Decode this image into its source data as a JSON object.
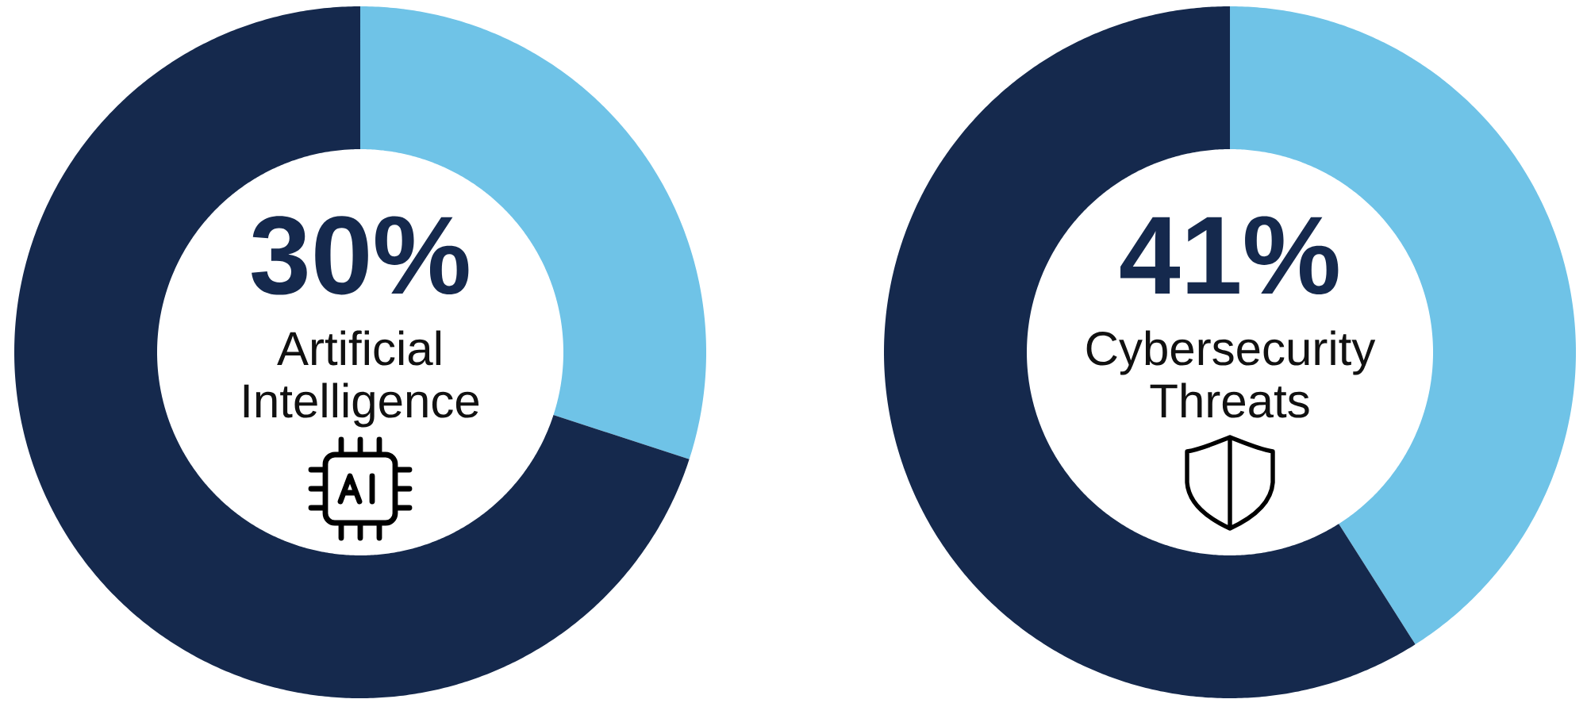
{
  "chart_data": [
    {
      "type": "donut",
      "categories": [
        "Artificial Intelligence",
        null
      ],
      "values": [
        30,
        70
      ],
      "colors": [
        "#6fc3e7",
        "#15294d"
      ],
      "value_labels": [
        "30%",
        null
      ]
    },
    {
      "type": "donut",
      "categories": [
        "Cybersecurity Threats",
        null
      ],
      "values": [
        41,
        59
      ],
      "colors": [
        "#6fc3e7",
        "#15294d"
      ],
      "value_labels": [
        "41%",
        null
      ]
    }
  ]
}
